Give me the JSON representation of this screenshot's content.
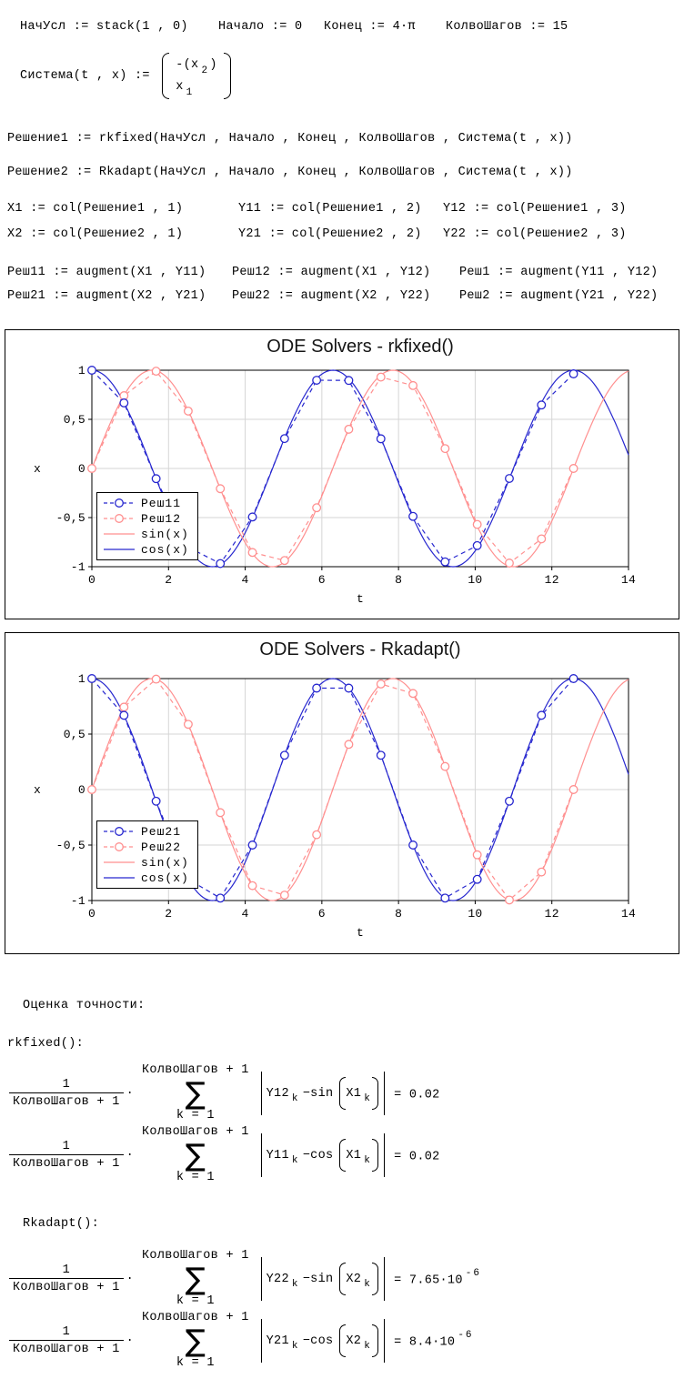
{
  "definitions": {
    "init_conditions": "НачУсл := stack(1 , 0)",
    "start": "Начало := 0",
    "end": "Конец := 4·π",
    "steps": "КолвоШагов := 15",
    "system_label": "Система(t , x) := ",
    "system_rows": [
      {
        "pre": "-(x",
        "sub": "2",
        "post": ")"
      },
      {
        "pre": "x",
        "sub": "1",
        "post": ""
      }
    ],
    "solution1": "Решение1 := rkfixed(НачУсл , Начало , Конец , КолвоШагов , Система(t , x))",
    "solution2": "Решение2 := Rkadapt(НачУсл , Начало , Конец , КолвоШагов , Система(t , x))",
    "cols_row1": [
      "X1 := col(Решение1 , 1)",
      "Y11 := col(Решение1 , 2)",
      "Y12 := col(Решение1 , 3)"
    ],
    "cols_row2": [
      "X2 := col(Решение2 , 1)",
      "Y21 := col(Решение2 , 2)",
      "Y22 := col(Решение2 , 3)"
    ],
    "aug_row1": [
      "Реш11 := augment(X1 , Y11)",
      "Реш12 := augment(X1 , Y12)",
      "Реш1 := augment(Y11 , Y12)"
    ],
    "aug_row2": [
      "Реш21 := augment(X2 , Y21)",
      "Реш22 := augment(X2 , Y22)",
      "Реш2 := augment(Y21 , Y22)"
    ]
  },
  "colors": {
    "blue": "#2727cf",
    "pink": "#ff8f8f",
    "grid": "#d6d6d6",
    "frame": "#000000"
  },
  "chart_data": [
    {
      "type": "line",
      "title": "ODE Solvers - rkfixed()",
      "xlabel": "t",
      "ylabel": "x",
      "xlim": [
        0,
        14
      ],
      "ylim": [
        -1,
        1
      ],
      "grid": true,
      "legend_position": "left-lower",
      "x_ticks": [
        {
          "v": 0,
          "label": "0"
        },
        {
          "v": 2,
          "label": "2"
        },
        {
          "v": 4,
          "label": "4"
        },
        {
          "v": 6,
          "label": "6"
        },
        {
          "v": 8,
          "label": "8"
        },
        {
          "v": 10,
          "label": "10"
        },
        {
          "v": 12,
          "label": "12"
        },
        {
          "v": 14,
          "label": "14"
        }
      ],
      "y_ticks": [
        {
          "v": 1,
          "label": "1"
        },
        {
          "v": 0.5,
          "label": "0,5"
        },
        {
          "v": 0,
          "label": "0"
        },
        {
          "v": -0.5,
          "label": "-0,5"
        },
        {
          "v": -1,
          "label": "-1"
        }
      ],
      "series": [
        {
          "name": "Реш11",
          "color": "#2727cf",
          "style": "dashed",
          "markers": true,
          "x": [
            0,
            0.838,
            1.676,
            2.513,
            3.351,
            4.189,
            5.027,
            5.864,
            6.702,
            7.54,
            8.378,
            9.215,
            10.053,
            10.891,
            11.729,
            12.566
          ],
          "y": [
            1,
            0.667,
            -0.104,
            -0.803,
            -0.968,
            -0.494,
            0.304,
            0.898,
            0.896,
            0.302,
            -0.488,
            -0.951,
            -0.785,
            -0.102,
            0.646,
            0.963
          ]
        },
        {
          "name": "Реш12",
          "color": "#ff8f8f",
          "style": "dashed",
          "markers": true,
          "x": [
            0,
            0.838,
            1.676,
            2.513,
            3.351,
            4.189,
            5.027,
            5.864,
            6.702,
            7.54,
            8.378,
            9.215,
            10.053,
            10.891,
            11.729,
            12.566
          ],
          "y": [
            0,
            0.741,
            0.99,
            0.584,
            -0.206,
            -0.855,
            -0.937,
            -0.4,
            0.399,
            0.93,
            0.844,
            0.202,
            -0.57,
            -0.963,
            -0.717,
            0
          ]
        },
        {
          "name": "sin(x)",
          "color": "#ff8f8f",
          "style": "solid",
          "markers": false,
          "fn": "sin",
          "domain": [
            0,
            14
          ]
        },
        {
          "name": "cos(x)",
          "color": "#2727cf",
          "style": "solid",
          "markers": false,
          "fn": "cos",
          "domain": [
            0,
            14
          ]
        }
      ]
    },
    {
      "type": "line",
      "title": "ODE Solvers - Rkadapt()",
      "xlabel": "t",
      "ylabel": "x",
      "xlim": [
        0,
        14
      ],
      "ylim": [
        -1,
        1
      ],
      "grid": true,
      "legend_position": "left-lower",
      "x_ticks": [
        {
          "v": 0,
          "label": "0"
        },
        {
          "v": 2,
          "label": "2"
        },
        {
          "v": 4,
          "label": "4"
        },
        {
          "v": 6,
          "label": "6"
        },
        {
          "v": 8,
          "label": "8"
        },
        {
          "v": 10,
          "label": "10"
        },
        {
          "v": 12,
          "label": "12"
        },
        {
          "v": 14,
          "label": "14"
        }
      ],
      "y_ticks": [
        {
          "v": 1,
          "label": "1"
        },
        {
          "v": 0.5,
          "label": "0,5"
        },
        {
          "v": 0,
          "label": "0"
        },
        {
          "v": -0.5,
          "label": "-0,5"
        },
        {
          "v": -1,
          "label": "-1"
        }
      ],
      "series": [
        {
          "name": "Реш21",
          "color": "#2727cf",
          "style": "dashed",
          "markers": true,
          "x": [
            0,
            0.838,
            1.676,
            2.513,
            3.351,
            4.189,
            5.027,
            5.864,
            6.702,
            7.54,
            8.378,
            9.215,
            10.053,
            10.891,
            11.729,
            12.566
          ],
          "y": [
            1,
            0.669,
            -0.105,
            -0.809,
            -0.978,
            -0.5,
            0.309,
            0.914,
            0.914,
            0.309,
            -0.5,
            -0.978,
            -0.809,
            -0.105,
            0.669,
            1
          ]
        },
        {
          "name": "Реш22",
          "color": "#ff8f8f",
          "style": "dashed",
          "markers": true,
          "x": [
            0,
            0.838,
            1.676,
            2.513,
            3.351,
            4.189,
            5.027,
            5.864,
            6.702,
            7.54,
            8.378,
            9.215,
            10.053,
            10.891,
            11.729,
            12.566
          ],
          "y": [
            0,
            0.743,
            0.995,
            0.588,
            -0.208,
            -0.866,
            -0.951,
            -0.407,
            0.407,
            0.951,
            0.866,
            0.208,
            -0.588,
            -0.995,
            -0.743,
            0
          ]
        },
        {
          "name": "sin(x)",
          "color": "#ff8f8f",
          "style": "solid",
          "markers": false,
          "fn": "sin",
          "domain": [
            0,
            14
          ]
        },
        {
          "name": "cos(x)",
          "color": "#2727cf",
          "style": "solid",
          "markers": false,
          "fn": "cos",
          "domain": [
            0,
            14
          ]
        }
      ]
    }
  ],
  "accuracy": {
    "heading": "Оценка точности:",
    "rkfixed_label": "rkfixed():",
    "rkadapt_label": "Rkadapt():",
    "formulas": [
      {
        "num": "1",
        "den": "КолвоШагов + 1",
        "dot": "·",
        "sum_upper": "КолвоШагов + 1",
        "sigma": "∑",
        "sum_lower": "k = 1",
        "lhs": "Y12",
        "lhs_sub": "k",
        "mid": "−sin",
        "arg": "X1",
        "arg_sub": "k",
        "result": "= 0.02",
        "exp": ""
      },
      {
        "num": "1",
        "den": "КолвоШагов + 1",
        "dot": "·",
        "sum_upper": "КолвоШагов + 1",
        "sigma": "∑",
        "sum_lower": "k = 1",
        "lhs": "Y11",
        "lhs_sub": "k",
        "mid": "−cos",
        "arg": "X1",
        "arg_sub": "k",
        "result": "= 0.02",
        "exp": ""
      },
      {
        "num": "1",
        "den": "КолвоШагов + 1",
        "dot": "·",
        "sum_upper": "КолвоШагов + 1",
        "sigma": "∑",
        "sum_lower": "k = 1",
        "lhs": "Y22",
        "lhs_sub": "k",
        "mid": "−sin",
        "arg": "X2",
        "arg_sub": "k",
        "result": "= 7.65·10",
        "exp": "-6"
      },
      {
        "num": "1",
        "den": "КолвоШагов + 1",
        "dot": "·",
        "sum_upper": "КолвоШагов + 1",
        "sigma": "∑",
        "sum_lower": "k = 1",
        "lhs": "Y21",
        "lhs_sub": "k",
        "mid": "−cos",
        "arg": "X2",
        "arg_sub": "k",
        "result": "= 8.4·10",
        "exp": "-6"
      }
    ]
  }
}
